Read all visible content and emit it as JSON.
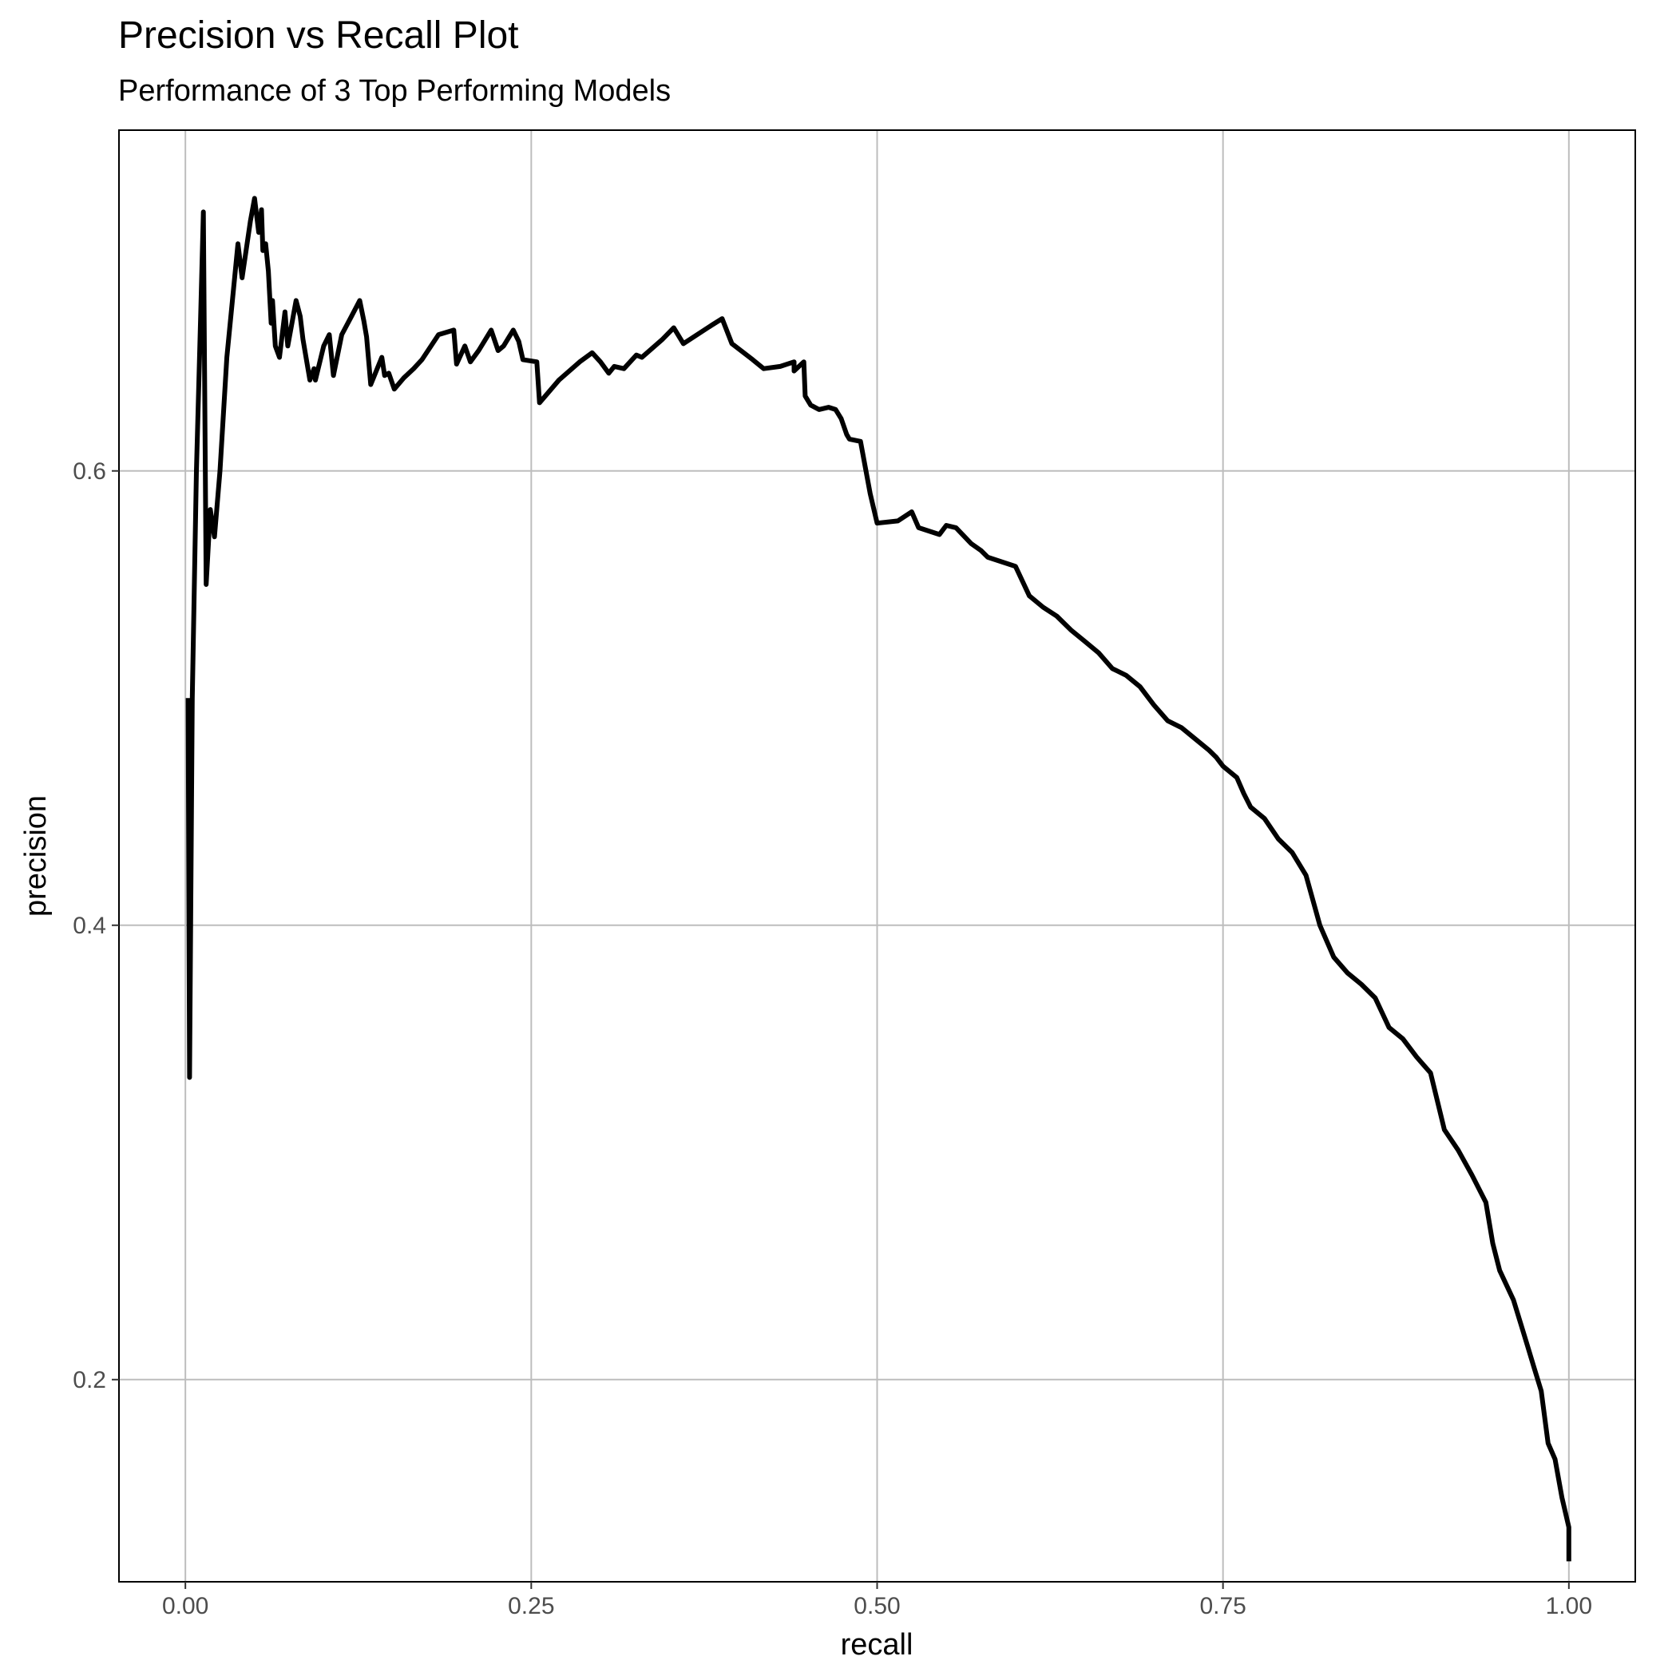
{
  "chart_data": {
    "type": "line",
    "title": "Precision vs Recall Plot",
    "subtitle": "Performance of 3 Top Performing Models",
    "xlabel": "recall",
    "ylabel": "precision",
    "xlim": [
      -0.048,
      1.048
    ],
    "ylim": [
      0.111,
      0.75
    ],
    "x_ticks": [
      0.0,
      0.25,
      0.5,
      0.75,
      1.0
    ],
    "x_tick_labels": [
      "0.00",
      "0.25",
      "0.50",
      "0.75",
      "1.00"
    ],
    "y_ticks": [
      0.2,
      0.4,
      0.6
    ],
    "y_tick_labels": [
      "0.2",
      "0.4",
      "0.6"
    ],
    "grid": true,
    "legend": "none",
    "colors": {
      "line": "#000000",
      "grid": "#bdbdbd",
      "frame": "#000000",
      "background": "#ffffff"
    },
    "series": [
      {
        "points": [
          [
            0.002,
            0.5
          ],
          [
            0.003,
            0.333
          ],
          [
            0.005,
            0.5
          ],
          [
            0.008,
            0.6
          ],
          [
            0.011,
            0.667
          ],
          [
            0.013,
            0.714
          ],
          [
            0.015,
            0.55
          ],
          [
            0.018,
            0.583
          ],
          [
            0.021,
            0.571
          ],
          [
            0.025,
            0.6
          ],
          [
            0.03,
            0.65
          ],
          [
            0.038,
            0.7
          ],
          [
            0.041,
            0.685
          ],
          [
            0.047,
            0.71
          ],
          [
            0.05,
            0.72
          ],
          [
            0.053,
            0.705
          ],
          [
            0.055,
            0.715
          ],
          [
            0.056,
            0.697
          ],
          [
            0.058,
            0.7
          ],
          [
            0.06,
            0.688
          ],
          [
            0.062,
            0.665
          ],
          [
            0.063,
            0.675
          ],
          [
            0.065,
            0.655
          ],
          [
            0.068,
            0.65
          ],
          [
            0.072,
            0.67
          ],
          [
            0.074,
            0.655
          ],
          [
            0.08,
            0.675
          ],
          [
            0.083,
            0.668
          ],
          [
            0.085,
            0.658
          ],
          [
            0.09,
            0.64
          ],
          [
            0.093,
            0.645
          ],
          [
            0.094,
            0.64
          ],
          [
            0.1,
            0.655
          ],
          [
            0.104,
            0.66
          ],
          [
            0.107,
            0.642
          ],
          [
            0.113,
            0.66
          ],
          [
            0.12,
            0.668
          ],
          [
            0.126,
            0.675
          ],
          [
            0.129,
            0.666
          ],
          [
            0.131,
            0.659
          ],
          [
            0.134,
            0.638
          ],
          [
            0.142,
            0.65
          ],
          [
            0.144,
            0.642
          ],
          [
            0.147,
            0.643
          ],
          [
            0.151,
            0.636
          ],
          [
            0.158,
            0.641
          ],
          [
            0.165,
            0.645
          ],
          [
            0.171,
            0.649
          ],
          [
            0.183,
            0.66
          ],
          [
            0.194,
            0.662
          ],
          [
            0.196,
            0.647
          ],
          [
            0.202,
            0.655
          ],
          [
            0.206,
            0.648
          ],
          [
            0.212,
            0.653
          ],
          [
            0.221,
            0.662
          ],
          [
            0.226,
            0.653
          ],
          [
            0.23,
            0.655
          ],
          [
            0.237,
            0.662
          ],
          [
            0.241,
            0.657
          ],
          [
            0.244,
            0.649
          ],
          [
            0.254,
            0.648
          ],
          [
            0.256,
            0.63
          ],
          [
            0.27,
            0.64
          ],
          [
            0.285,
            0.648
          ],
          [
            0.294,
            0.652
          ],
          [
            0.3,
            0.648
          ],
          [
            0.306,
            0.643
          ],
          [
            0.31,
            0.646
          ],
          [
            0.317,
            0.645
          ],
          [
            0.326,
            0.651
          ],
          [
            0.33,
            0.65
          ],
          [
            0.345,
            0.658
          ],
          [
            0.353,
            0.663
          ],
          [
            0.36,
            0.656
          ],
          [
            0.38,
            0.664
          ],
          [
            0.388,
            0.667
          ],
          [
            0.395,
            0.656
          ],
          [
            0.41,
            0.649
          ],
          [
            0.418,
            0.645
          ],
          [
            0.43,
            0.646
          ],
          [
            0.44,
            0.648
          ],
          [
            0.44,
            0.644
          ],
          [
            0.447,
            0.648
          ],
          [
            0.448,
            0.633
          ],
          [
            0.452,
            0.629
          ],
          [
            0.458,
            0.627
          ],
          [
            0.465,
            0.628
          ],
          [
            0.47,
            0.627
          ],
          [
            0.474,
            0.623
          ],
          [
            0.478,
            0.616
          ],
          [
            0.48,
            0.614
          ],
          [
            0.488,
            0.613
          ],
          [
            0.495,
            0.59
          ],
          [
            0.5,
            0.577
          ],
          [
            0.515,
            0.578
          ],
          [
            0.525,
            0.582
          ],
          [
            0.53,
            0.575
          ],
          [
            0.545,
            0.572
          ],
          [
            0.55,
            0.576
          ],
          [
            0.557,
            0.575
          ],
          [
            0.568,
            0.568
          ],
          [
            0.575,
            0.565
          ],
          [
            0.58,
            0.562
          ],
          [
            0.6,
            0.558
          ],
          [
            0.61,
            0.545
          ],
          [
            0.62,
            0.54
          ],
          [
            0.63,
            0.536
          ],
          [
            0.64,
            0.53
          ],
          [
            0.65,
            0.525
          ],
          [
            0.66,
            0.52
          ],
          [
            0.67,
            0.513
          ],
          [
            0.68,
            0.51
          ],
          [
            0.69,
            0.505
          ],
          [
            0.7,
            0.497
          ],
          [
            0.71,
            0.49
          ],
          [
            0.72,
            0.487
          ],
          [
            0.73,
            0.482
          ],
          [
            0.74,
            0.477
          ],
          [
            0.745,
            0.474
          ],
          [
            0.75,
            0.47
          ],
          [
            0.76,
            0.465
          ],
          [
            0.765,
            0.458
          ],
          [
            0.77,
            0.452
          ],
          [
            0.78,
            0.447
          ],
          [
            0.79,
            0.438
          ],
          [
            0.8,
            0.432
          ],
          [
            0.81,
            0.422
          ],
          [
            0.82,
            0.4
          ],
          [
            0.83,
            0.386
          ],
          [
            0.84,
            0.379
          ],
          [
            0.85,
            0.374
          ],
          [
            0.86,
            0.368
          ],
          [
            0.87,
            0.355
          ],
          [
            0.88,
            0.35
          ],
          [
            0.89,
            0.342
          ],
          [
            0.9,
            0.335
          ],
          [
            0.91,
            0.31
          ],
          [
            0.92,
            0.301
          ],
          [
            0.93,
            0.29
          ],
          [
            0.94,
            0.278
          ],
          [
            0.945,
            0.26
          ],
          [
            0.95,
            0.248
          ],
          [
            0.96,
            0.235
          ],
          [
            0.97,
            0.215
          ],
          [
            0.975,
            0.205
          ],
          [
            0.98,
            0.195
          ],
          [
            0.985,
            0.172
          ],
          [
            0.99,
            0.165
          ],
          [
            0.995,
            0.148
          ],
          [
            1.0,
            0.135
          ],
          [
            1.0,
            0.12
          ]
        ]
      }
    ]
  }
}
